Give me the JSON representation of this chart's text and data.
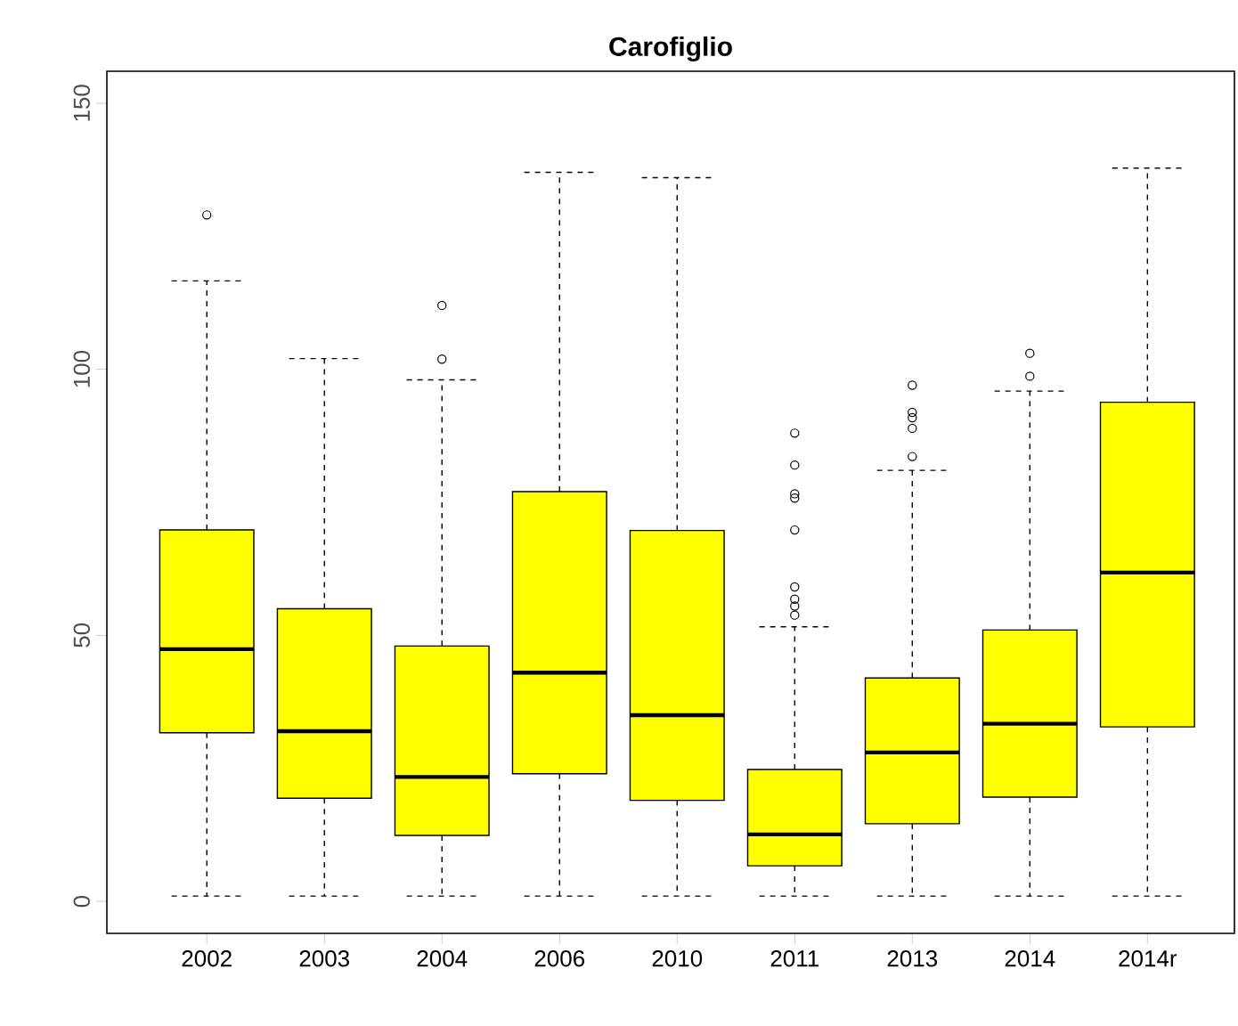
{
  "chart_data": {
    "type": "box",
    "title": "Carofiglio",
    "color": "#ffff00",
    "ylim": [
      -6,
      156
    ],
    "yticks": [
      0,
      50,
      100,
      150
    ],
    "categories": [
      "2002",
      "2003",
      "2004",
      "2006",
      "2010",
      "2011",
      "2013",
      "2014",
      "2014r"
    ],
    "boxes": [
      {
        "low": 1,
        "q1": 31.7,
        "median": 47.4,
        "q3": 69.8,
        "high": 116.6,
        "outliers": [
          129
        ]
      },
      {
        "low": 1,
        "q1": 19.4,
        "median": 32,
        "q3": 55,
        "high": 102
      },
      {
        "low": 1,
        "q1": 12.4,
        "median": 23.4,
        "q3": 48,
        "high": 98,
        "outliers": [
          101.9,
          112
        ]
      },
      {
        "low": 1,
        "q1": 24,
        "median": 43,
        "q3": 77,
        "high": 137
      },
      {
        "low": 1,
        "q1": 19,
        "median": 35,
        "q3": 69.7,
        "high": 136
      },
      {
        "low": 1,
        "q1": 6.7,
        "median": 12.6,
        "q3": 24.8,
        "high": 51.6,
        "outliers": [
          53.8,
          55.5,
          56.8,
          59.1,
          69.8,
          75.8,
          76.6,
          82,
          88
        ]
      },
      {
        "low": 1,
        "q1": 14.6,
        "median": 28,
        "q3": 42,
        "high": 81,
        "outliers": [
          83.6,
          88.9,
          90.9,
          91.9,
          97
        ]
      },
      {
        "low": 1,
        "q1": 19.6,
        "median": 33.4,
        "q3": 51,
        "high": 95.9,
        "outliers": [
          98.7,
          103
        ]
      },
      {
        "low": 1,
        "q1": 32.8,
        "median": 61.8,
        "q3": 93.8,
        "high": 137.8
      }
    ]
  }
}
